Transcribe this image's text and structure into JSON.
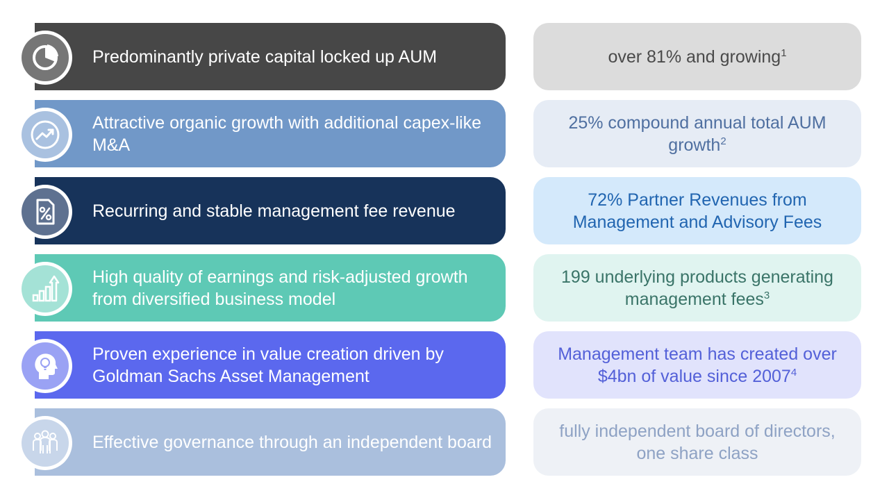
{
  "rows": [
    {
      "icon": "pie-chart-icon",
      "label": "Predominantly private capital locked up AUM",
      "value": "over 81% and growing",
      "footnote": "1",
      "colors": {
        "left": "#474747",
        "icon": "#767676",
        "right": "#dcdcdc",
        "rightText": "#4a4a4a"
      }
    },
    {
      "icon": "growth-trend-icon",
      "label": "Attractive organic growth with additional capex-like M&A",
      "value": "25% compound annual total AUM growth",
      "footnote": "2",
      "colors": {
        "left": "#7198c8",
        "icon": "#a9c1e0",
        "right": "#e6ecf5",
        "rightText": "#4f6fa0"
      }
    },
    {
      "icon": "percent-document-icon",
      "label": "Recurring and stable management fee revenue",
      "value": "72% Partner Revenues from Management and Advisory Fees",
      "footnote": "",
      "colors": {
        "left": "#17335a",
        "icon": "#5e7190",
        "right": "#d4e9fb",
        "rightText": "#2165b0"
      }
    },
    {
      "icon": "bar-growth-arrow-icon",
      "label": "High quality of earnings and risk-adjusted growth from diversified business model",
      "value": "199 underlying products generating management fees",
      "footnote": "3",
      "colors": {
        "left": "#5ec9b5",
        "icon": "#a4e2d6",
        "right": "#e0f4f0",
        "rightText": "#3a7468"
      }
    },
    {
      "icon": "lightbulb-head-icon",
      "label": "Proven experience in value creation driven by Goldman Sachs Asset Management",
      "value": "Management team has created over $4bn of value since 2007",
      "footnote": "4",
      "colors": {
        "left": "#5b68ee",
        "icon": "#9aa2f4",
        "right": "#e1e3fc",
        "rightText": "#5360d8"
      }
    },
    {
      "icon": "people-group-icon",
      "label": "Effective governance through an independent board",
      "value": "fully independent board of directors, one share class",
      "footnote": "",
      "colors": {
        "left": "#aabfdd",
        "icon": "#c8d6ea",
        "right": "#eef1f6",
        "rightText": "#8ea2c4"
      }
    }
  ]
}
